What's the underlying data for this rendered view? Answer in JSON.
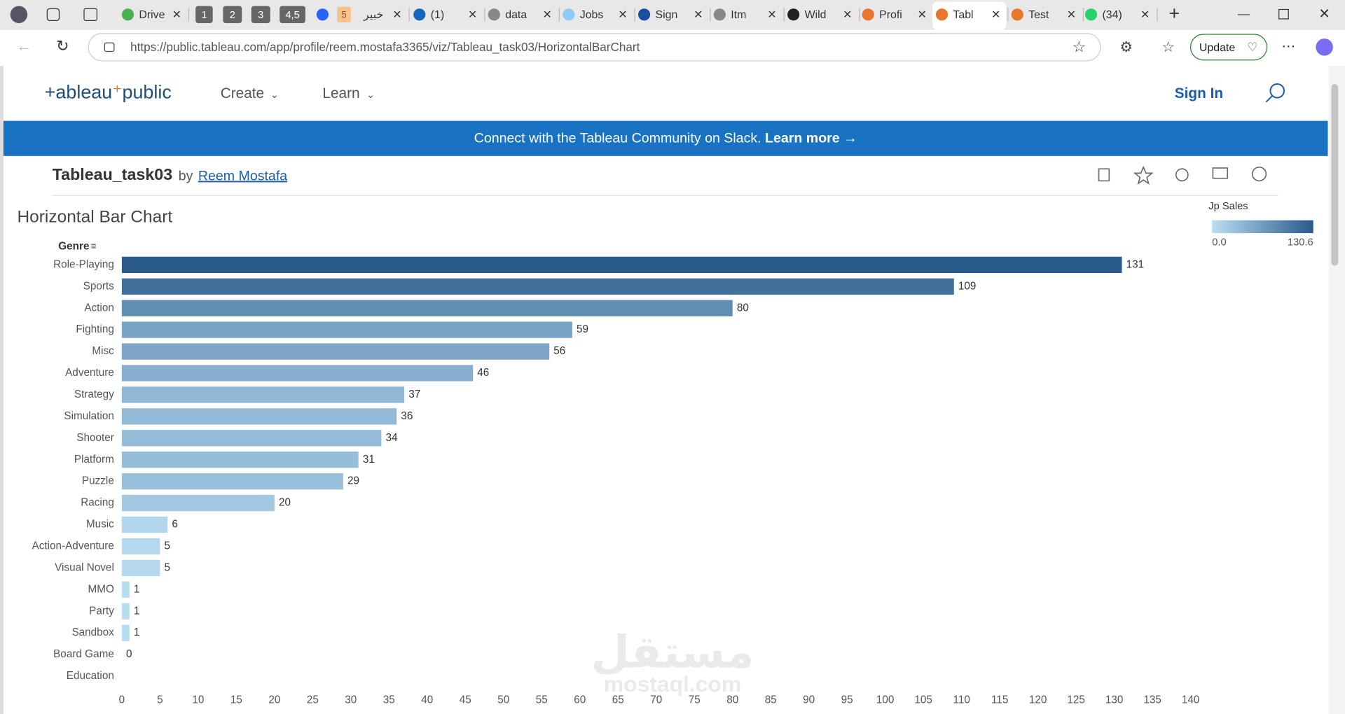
{
  "browser": {
    "tabs": [
      {
        "label": "Drive"
      },
      {
        "label": "1"
      },
      {
        "label": "2"
      },
      {
        "label": "3"
      },
      {
        "label": "4,5"
      },
      {
        "badge": "5",
        "label": "خبير"
      },
      {
        "label": "(1)"
      },
      {
        "label": "data"
      },
      {
        "label": "Jobs"
      },
      {
        "label": "Sign"
      },
      {
        "label": "Itm"
      },
      {
        "label": "Wild"
      },
      {
        "label": "Profi"
      },
      {
        "label": "Tabl"
      },
      {
        "label": "Test"
      },
      {
        "label": "(34)"
      }
    ],
    "url": "https://public.tableau.com/app/profile/reem.mostafa3365/viz/Tableau_task03/HorizontalBarChart",
    "update_button": "Update"
  },
  "site": {
    "logo": [
      "+ableau",
      "public"
    ],
    "nav": [
      "Create",
      "Learn"
    ],
    "sign_in": "Sign In",
    "banner": {
      "text": "Connect with the Tableau Community on Slack.",
      "link": "Learn more →"
    },
    "viz_title": "Tableau_task03",
    "by": "by",
    "author": "Reem Mostafa",
    "watermark": [
      "مستقل",
      "mostaql.com"
    ]
  },
  "chart_data": {
    "type": "bar",
    "orientation": "horizontal",
    "title": "Horizontal Bar Chart",
    "y_label": "Genre",
    "categories": [
      "Role-Playing",
      "Sports",
      "Action",
      "Fighting",
      "Misc",
      "Adventure",
      "Strategy",
      "Simulation",
      "Shooter",
      "Platform",
      "Puzzle",
      "Racing",
      "Music",
      "Action-Adventure",
      "Visual Novel",
      "MMO",
      "Party",
      "Sandbox",
      "Board Game",
      "Education"
    ],
    "values": [
      131,
      109,
      80,
      59,
      56,
      46,
      37,
      36,
      34,
      31,
      29,
      20,
      6,
      5,
      5,
      1,
      1,
      1,
      0,
      null
    ],
    "xlim": [
      0,
      141
    ],
    "xticks": [
      0,
      5,
      10,
      15,
      20,
      25,
      30,
      35,
      40,
      45,
      50,
      55,
      60,
      65,
      70,
      75,
      80,
      85,
      90,
      95,
      100,
      105,
      110,
      115,
      120,
      125,
      130,
      135,
      140
    ],
    "color_scale": {
      "title": "Jp Sales",
      "low_color": "#b9ddf1",
      "high_color": "#2a5a8c",
      "min": {
        "value": 0,
        "label": "0.0"
      },
      "max": {
        "value": 130.6,
        "label": "130.6"
      }
    }
  }
}
